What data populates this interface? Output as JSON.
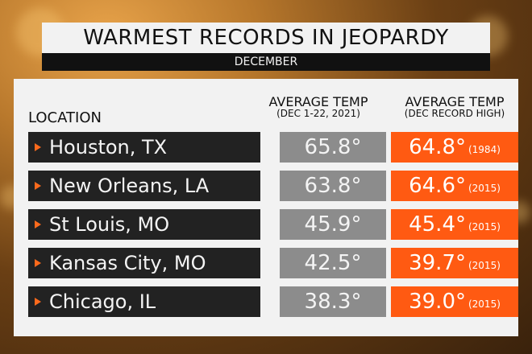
{
  "title": "WARMEST RECORDS IN JEOPARDY",
  "subtitle": "DECEMBER",
  "headers": {
    "location": "LOCATION",
    "avg_line1": "AVERAGE TEMP",
    "avg_line2": "(DEC 1-22, 2021)",
    "record_line1": "AVERAGE TEMP",
    "record_line2": "(DEC RECORD HIGH)"
  },
  "rows": [
    {
      "location": "Houston, TX",
      "avg": "65.8°",
      "record": "64.8°",
      "year": "(1984)"
    },
    {
      "location": "New Orleans, LA",
      "avg": "63.8°",
      "record": "64.6°",
      "year": "(2015)"
    },
    {
      "location": "St Louis, MO",
      "avg": "45.9°",
      "record": "45.4°",
      "year": "(2015)"
    },
    {
      "location": "Kansas City, MO",
      "avg": "42.5°",
      "record": "39.7°",
      "year": "(2015)"
    },
    {
      "location": "Chicago, IL",
      "avg": "38.3°",
      "record": "39.0°",
      "year": "(2015)"
    }
  ],
  "colors": {
    "location_bg": "#222222",
    "average_bg": "#8c8c8c",
    "record_bg": "#ff5a12",
    "arrow": "#ff6a1c"
  }
}
